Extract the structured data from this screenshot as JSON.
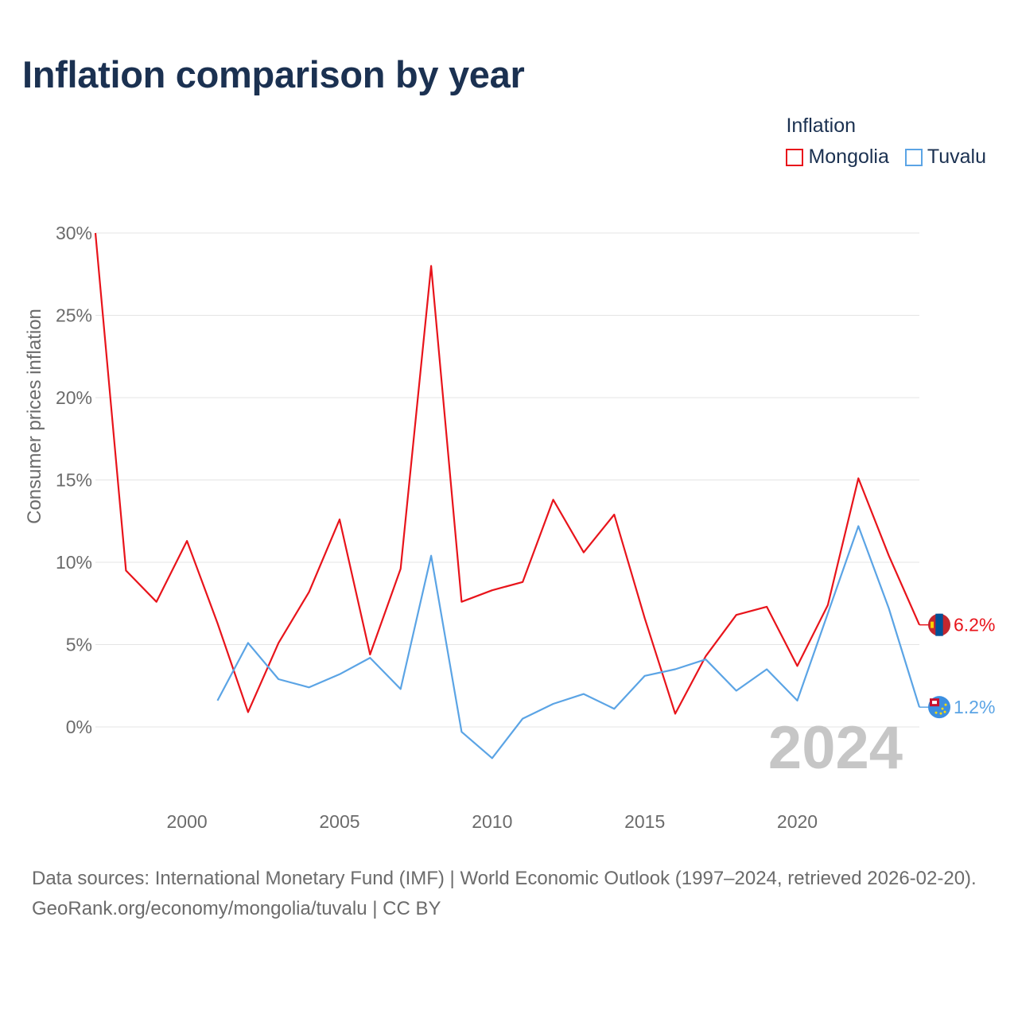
{
  "title": "Inflation comparison by year",
  "legend": {
    "title": "Inflation",
    "items": [
      {
        "label": "Mongolia",
        "color": "#e8141b"
      },
      {
        "label": "Tuvalu",
        "color": "#5ba4e5"
      }
    ]
  },
  "chart_data": {
    "type": "line",
    "title": "Inflation comparison by year",
    "ylabel": "Consumer prices inflation",
    "xlabel": "",
    "xlim": [
      1997,
      2024
    ],
    "ylim": [
      -5,
      30
    ],
    "yticks": [
      0,
      5,
      10,
      15,
      20,
      25,
      30
    ],
    "ytick_labels": [
      "0%",
      "5%",
      "10%",
      "15%",
      "20%",
      "25%",
      "30%"
    ],
    "xticks": [
      2000,
      2005,
      2010,
      2015,
      2020
    ],
    "xtick_labels": [
      "2000",
      "2005",
      "2010",
      "2015",
      "2020"
    ],
    "grid": true,
    "watermark": "2024",
    "series": [
      {
        "name": "Mongolia",
        "color": "#e8141b",
        "end_label": "6.2%",
        "x": [
          1997,
          1998,
          1999,
          2000,
          2001,
          2002,
          2003,
          2004,
          2005,
          2006,
          2007,
          2008,
          2009,
          2010,
          2011,
          2012,
          2013,
          2014,
          2015,
          2016,
          2017,
          2018,
          2019,
          2020,
          2021,
          2022,
          2023,
          2024
        ],
        "values": [
          30.0,
          9.5,
          7.6,
          11.3,
          6.3,
          0.9,
          5.1,
          8.2,
          12.6,
          4.4,
          9.6,
          28.0,
          7.6,
          8.3,
          8.8,
          13.8,
          10.6,
          12.9,
          6.6,
          0.8,
          4.3,
          6.8,
          7.3,
          3.7,
          7.4,
          15.1,
          10.4,
          6.2
        ]
      },
      {
        "name": "Tuvalu",
        "color": "#5ba4e5",
        "end_label": "1.2%",
        "x": [
          2001,
          2002,
          2003,
          2004,
          2005,
          2006,
          2007,
          2008,
          2009,
          2010,
          2011,
          2012,
          2013,
          2014,
          2015,
          2016,
          2017,
          2018,
          2019,
          2020,
          2021,
          2022,
          2023,
          2024
        ],
        "values": [
          1.6,
          5.1,
          2.9,
          2.4,
          3.2,
          4.2,
          2.3,
          10.4,
          -0.3,
          -1.9,
          0.5,
          1.4,
          2.0,
          1.1,
          3.1,
          3.5,
          4.1,
          2.2,
          3.5,
          1.6,
          6.9,
          12.2,
          7.2,
          1.2
        ]
      }
    ]
  },
  "footer": {
    "sources": "Data sources: International Monetary Fund (IMF) | World Economic Outlook (1997–2024, retrieved 2026-02-20).",
    "credit": "GeoRank.org/economy/mongolia/tuvalu | CC BY"
  }
}
